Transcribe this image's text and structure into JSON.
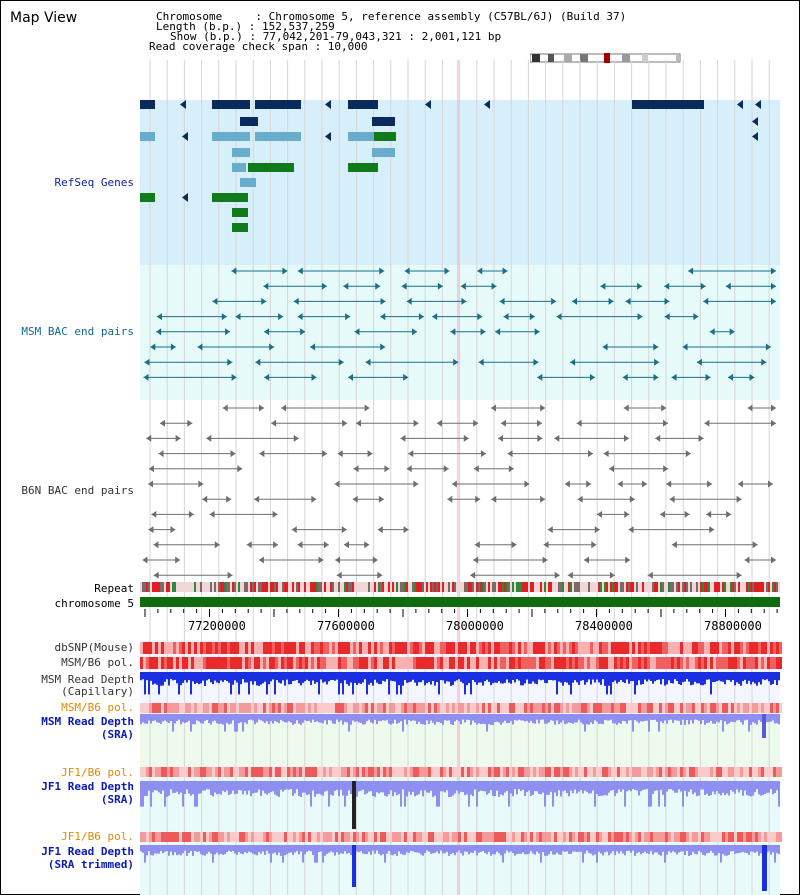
{
  "app": {
    "title": "Map View"
  },
  "info": {
    "line1": "Chromosome     : Chromosome 5, reference assembly (C57BL/6J) (Build 37)",
    "line2": "Length (b.p.) : 152,537,259",
    "line3": "Show (b.p.) : 77,042,201-79,043,321 : 2,001,121 bp",
    "line4": "Read coverage check span : 10,000"
  },
  "tracks": {
    "refseq": "RefSeq Genes",
    "msm_bac": "MSM BAC end pairs",
    "b6n_bac": "B6N BAC end pairs",
    "repeat": "Repeat",
    "chromosome": "chromosome 5",
    "dbsnp": "dbSNP(Mouse)",
    "msm_b6_pol": "MSM/B6 pol.",
    "msm_depth_cap_1": "MSM Read Depth",
    "msm_depth_cap_2": "(Capillary)",
    "msm_b6_pol_2": "MSM/B6 pol.",
    "msm_depth_sra_1": "MSM Read Depth",
    "msm_depth_sra_2": "(SRA)",
    "jf1_b6_pol": "JF1/B6 pol.",
    "jf1_depth_sra_1": "JF1 Read Depth",
    "jf1_depth_sra_2": "(SRA)",
    "jf1_b6_pol_2": "JF1/B6 pol.",
    "jf1_depth_trim_1": "JF1 Read Depth",
    "jf1_depth_trim_2": "(SRA trimmed)"
  },
  "axis": {
    "ticks": [
      "77200000",
      "77600000",
      "78000000",
      "78400000",
      "78800000"
    ]
  },
  "colors": {
    "refseq_bg": "#d6effa",
    "bac_bg": "#e6fafa",
    "gene_dark": "#0b2a5c",
    "gene_mid": "#4590b8",
    "gene_light": "#6aaccc",
    "gene_green": "#117a1a",
    "msm_pair": "#1a6f86",
    "b6n_pair": "#6e6e6e",
    "chrom_bar": "#0e6b0e",
    "depth_blue": "#1a2fe0",
    "depth_light": "#8f8ff2"
  }
}
